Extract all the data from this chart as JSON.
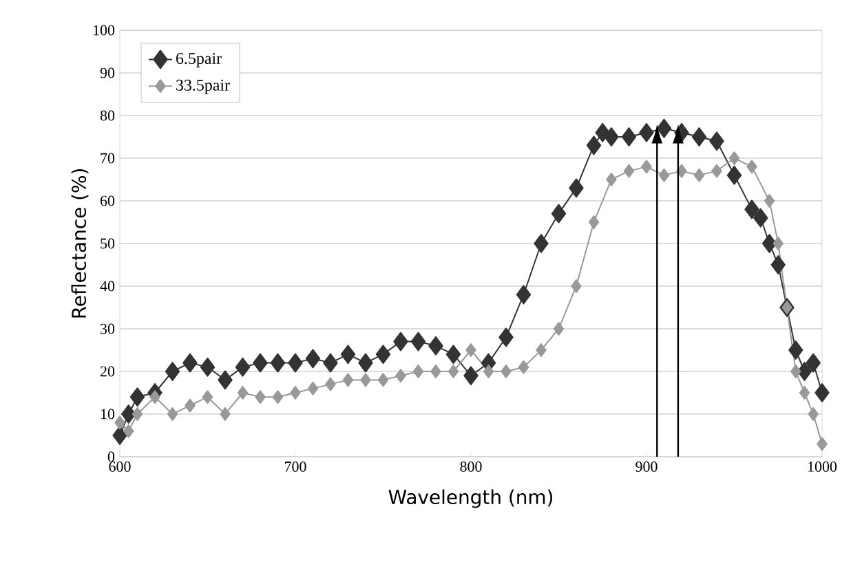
{
  "chart_data": {
    "type": "line",
    "xlabel": "Wavelength (nm)",
    "ylabel": "Reflectance (%)",
    "xlim": [
      600,
      1000
    ],
    "xticks": [
      600,
      700,
      800,
      900,
      1000
    ],
    "ylim": [
      0,
      100
    ],
    "yticks": [
      0,
      10,
      20,
      30,
      40,
      50,
      60,
      70,
      80,
      90,
      100
    ],
    "grid": "y",
    "legend": "top left",
    "marker": "diamond",
    "ref_lines": [
      {
        "axis": "x",
        "value": 906,
        "color": "#000000"
      },
      {
        "axis": "x",
        "value": 918,
        "color": "#000000"
      }
    ],
    "series": [
      {
        "name": "6.5pair",
        "color": "#333333",
        "x": [
          600,
          605,
          610,
          620,
          630,
          640,
          650,
          660,
          670,
          680,
          690,
          700,
          710,
          720,
          730,
          740,
          750,
          760,
          770,
          780,
          790,
          800,
          810,
          820,
          830,
          840,
          850,
          860,
          870,
          875,
          880,
          890,
          900,
          910,
          920,
          930,
          940,
          950,
          960,
          965,
          970,
          975,
          980,
          985,
          990,
          995,
          1000
        ],
        "values": [
          5,
          10,
          14,
          15,
          20,
          22,
          21,
          18,
          21,
          22,
          22,
          22,
          23,
          22,
          24,
          22,
          24,
          27,
          27,
          26,
          24,
          19,
          22,
          28,
          38,
          50,
          57,
          63,
          73,
          76,
          75,
          75,
          76,
          77,
          76,
          75,
          74,
          66,
          58,
          56,
          50,
          45,
          35,
          25,
          20,
          22,
          15
        ]
      },
      {
        "name": "33.5pair",
        "color": "#999999",
        "x": [
          600,
          605,
          610,
          620,
          630,
          640,
          650,
          660,
          670,
          680,
          690,
          700,
          710,
          720,
          730,
          740,
          750,
          760,
          770,
          780,
          790,
          800,
          810,
          820,
          830,
          840,
          850,
          860,
          870,
          880,
          890,
          900,
          910,
          920,
          930,
          940,
          950,
          960,
          970,
          975,
          980,
          985,
          990,
          995,
          1000
        ],
        "values": [
          8,
          6,
          10,
          14,
          10,
          12,
          14,
          10,
          15,
          14,
          14,
          15,
          16,
          17,
          18,
          18,
          18,
          19,
          20,
          20,
          20,
          25,
          20,
          20,
          21,
          25,
          30,
          40,
          55,
          65,
          67,
          68,
          66,
          67,
          66,
          67,
          70,
          68,
          60,
          50,
          35,
          20,
          15,
          10,
          3
        ]
      }
    ]
  }
}
